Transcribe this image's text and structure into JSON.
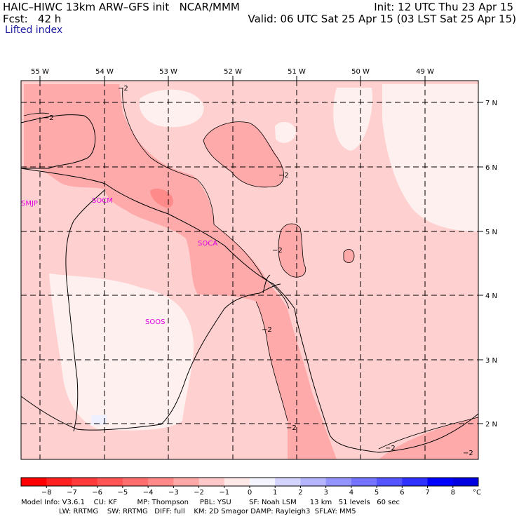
{
  "header": {
    "left_line1": "HAIC–HIWC 13km ARW–GFS init   NCAR/MMM",
    "left_line2": "Fcst:   42 h",
    "left_line3": "Lifted index",
    "right_line1": "Init: 12 UTC Thu 23 Apr 15",
    "right_line2": "Valid: 06 UTC Sat 25 Apr 15 (03 LST Sat 25 Apr 15)"
  },
  "map": {
    "lon_labels": [
      "55 W",
      "54 W",
      "53 W",
      "52 W",
      "51 W",
      "50 W",
      "49 W"
    ],
    "lat_labels": [
      "7 N",
      "6 N",
      "5 N",
      "4 N",
      "3 N",
      "2 N"
    ],
    "stations": [
      "SMJP",
      "SOCM",
      "SOCA",
      "SOOS"
    ],
    "contour_label": "−2",
    "colors": {
      "light_pink": "#ffd0d0",
      "pink": "#ffaaaa",
      "very_light": "#fff0f0",
      "darker": "#ff8a8a",
      "station": "#e000e0"
    }
  },
  "colorbar": {
    "unit": "°C",
    "ticks": [
      "−8",
      "−7",
      "−6",
      "−5",
      "−4",
      "−3",
      "−2",
      "−1",
      "0",
      "1",
      "2",
      "3",
      "4",
      "5",
      "6",
      "7",
      "8"
    ],
    "colors": [
      "#ff0000",
      "#ff2020",
      "#ff3a3a",
      "#ff5454",
      "#ff6e6e",
      "#ff8888",
      "#ffa8a8",
      "#ffc8c8",
      "#ffe8e8",
      "#f4f4ff",
      "#d4d4ff",
      "#b4b4ff",
      "#9494ff",
      "#7474ff",
      "#5454ff",
      "#3030ff",
      "#0000ff",
      "#0000e0"
    ]
  },
  "footer": {
    "line1": "Model Info: V3.6.1    CU: KF         MP: Thompson     PBL: YSU        SF: Noah LSM      13 km   51 levels   60 sec",
    "line2": "LW: RRTMG    SW: RRTMG   DIFF: full    KM: 2D Smagor DAMP: Rayleigh3  SFLAY: MM5"
  }
}
